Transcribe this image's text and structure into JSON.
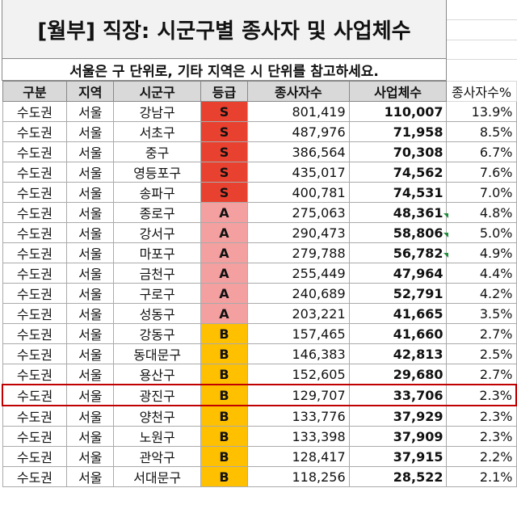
{
  "title": "[월부] 직장: 시군구별 종사자 및 사업체수",
  "notice": "서울은 구 단위로, 기타 지역은 시 단위를 참고하세요.",
  "headers": {
    "region_group": "구분",
    "region": "지역",
    "district": "시군구",
    "grade": "등급",
    "workers": "종사자수",
    "businesses": "사업체수",
    "worker_pct": "종사자수%"
  },
  "grade_colors": {
    "S": "#e8412f",
    "A": "#f4a0a0",
    "B": "#ffc000"
  },
  "rows": [
    {
      "group": "수도권",
      "region": "서울",
      "district": "강남구",
      "grade": "S",
      "workers": "801,419",
      "businesses": "110,007",
      "pct": "13.9%"
    },
    {
      "group": "수도권",
      "region": "서울",
      "district": "서초구",
      "grade": "S",
      "workers": "487,976",
      "businesses": "71,958",
      "pct": "8.5%"
    },
    {
      "group": "수도권",
      "region": "서울",
      "district": "중구",
      "grade": "S",
      "workers": "386,564",
      "businesses": "70,308",
      "pct": "6.7%"
    },
    {
      "group": "수도권",
      "region": "서울",
      "district": "영등포구",
      "grade": "S",
      "workers": "435,017",
      "businesses": "74,562",
      "pct": "7.6%"
    },
    {
      "group": "수도권",
      "region": "서울",
      "district": "송파구",
      "grade": "S",
      "workers": "400,781",
      "businesses": "74,531",
      "pct": "7.0%"
    },
    {
      "group": "수도권",
      "region": "서울",
      "district": "종로구",
      "grade": "A",
      "workers": "275,063",
      "businesses": "48,361",
      "pct": "4.8%"
    },
    {
      "group": "수도권",
      "region": "서울",
      "district": "강서구",
      "grade": "A",
      "workers": "290,473",
      "businesses": "58,806",
      "pct": "5.0%"
    },
    {
      "group": "수도권",
      "region": "서울",
      "district": "마포구",
      "grade": "A",
      "workers": "279,788",
      "businesses": "56,782",
      "pct": "4.9%"
    },
    {
      "group": "수도권",
      "region": "서울",
      "district": "금천구",
      "grade": "A",
      "workers": "255,449",
      "businesses": "47,964",
      "pct": "4.4%"
    },
    {
      "group": "수도권",
      "region": "서울",
      "district": "구로구",
      "grade": "A",
      "workers": "240,689",
      "businesses": "52,791",
      "pct": "4.2%"
    },
    {
      "group": "수도권",
      "region": "서울",
      "district": "성동구",
      "grade": "A",
      "workers": "203,221",
      "businesses": "41,665",
      "pct": "3.5%"
    },
    {
      "group": "수도권",
      "region": "서울",
      "district": "강동구",
      "grade": "B",
      "workers": "157,465",
      "businesses": "41,660",
      "pct": "2.7%"
    },
    {
      "group": "수도권",
      "region": "서울",
      "district": "동대문구",
      "grade": "B",
      "workers": "146,383",
      "businesses": "42,813",
      "pct": "2.5%"
    },
    {
      "group": "수도권",
      "region": "서울",
      "district": "용산구",
      "grade": "B",
      "workers": "152,605",
      "businesses": "29,680",
      "pct": "2.7%"
    },
    {
      "group": "수도권",
      "region": "서울",
      "district": "광진구",
      "grade": "B",
      "workers": "129,707",
      "businesses": "33,706",
      "pct": "2.3%"
    },
    {
      "group": "수도권",
      "region": "서울",
      "district": "양천구",
      "grade": "B",
      "workers": "133,776",
      "businesses": "37,929",
      "pct": "2.3%"
    },
    {
      "group": "수도권",
      "region": "서울",
      "district": "노원구",
      "grade": "B",
      "workers": "133,398",
      "businesses": "37,909",
      "pct": "2.3%"
    },
    {
      "group": "수도권",
      "region": "서울",
      "district": "관악구",
      "grade": "B",
      "workers": "128,417",
      "businesses": "37,915",
      "pct": "2.2%"
    },
    {
      "group": "수도권",
      "region": "서울",
      "district": "서대문구",
      "grade": "B",
      "workers": "118,256",
      "businesses": "28,522",
      "pct": "2.1%"
    }
  ],
  "highlight_district": "광진구"
}
